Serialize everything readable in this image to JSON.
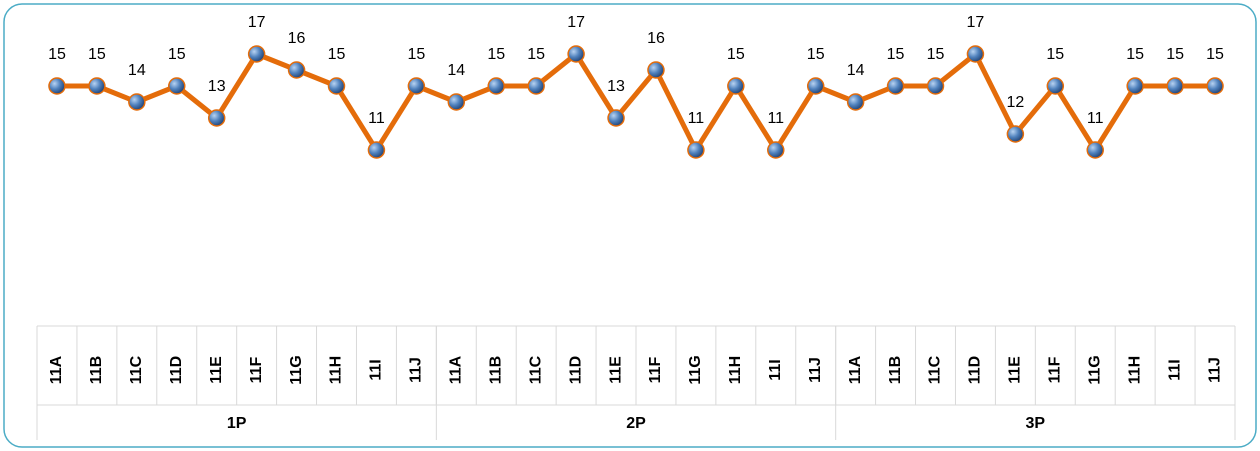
{
  "chart_data": {
    "type": "line",
    "categories": [
      "11A",
      "11B",
      "11C",
      "11D",
      "11E",
      "11F",
      "11G",
      "11H",
      "11I",
      "11J",
      "11A",
      "11B",
      "11C",
      "11D",
      "11E",
      "11F",
      "11G",
      "11H",
      "11I",
      "11J",
      "11A",
      "11B",
      "11C",
      "11D",
      "11E",
      "11F",
      "11G",
      "11H",
      "11I",
      "11J"
    ],
    "groups": [
      "1P",
      "2P",
      "3P"
    ],
    "values": [
      15,
      15,
      14,
      15,
      13,
      17,
      16,
      15,
      11,
      15,
      14,
      15,
      15,
      17,
      13,
      16,
      11,
      15,
      11,
      15,
      14,
      15,
      15,
      17,
      12,
      15,
      11,
      15,
      15,
      15
    ],
    "color": "#e46c0a",
    "marker_color": "#4f81bd"
  }
}
